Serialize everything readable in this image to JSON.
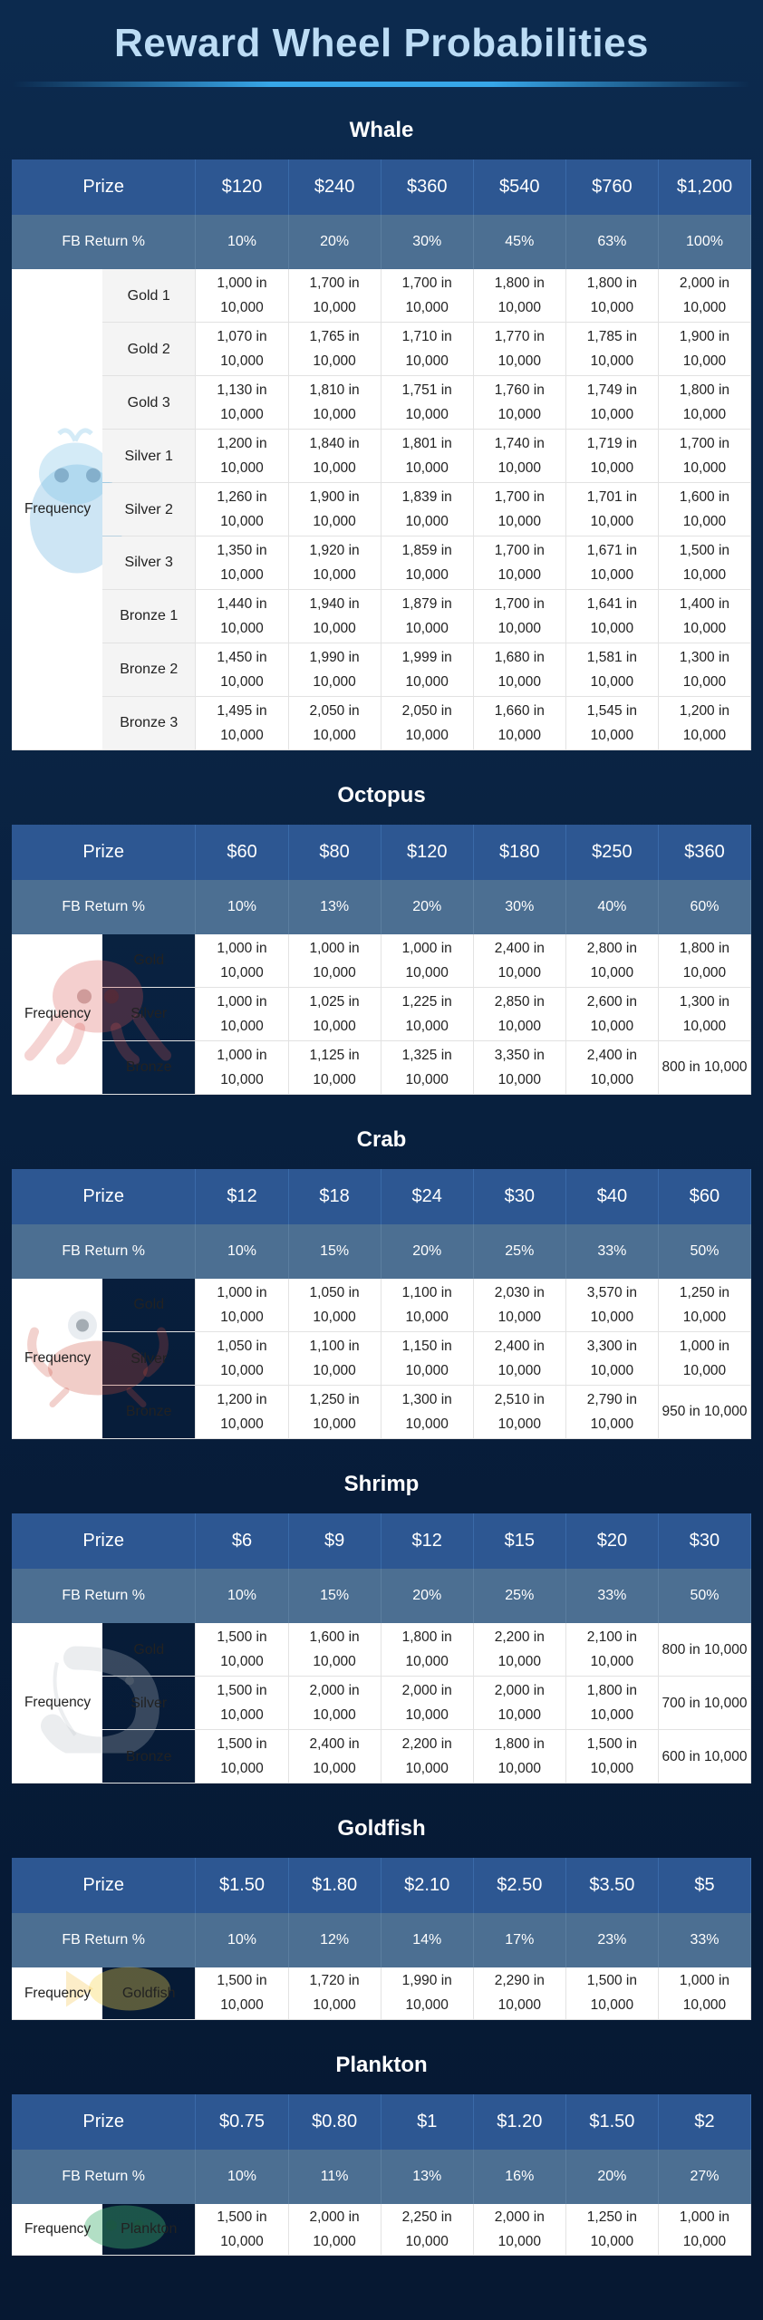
{
  "page": {
    "title": "Reward Wheel Probabilities"
  },
  "labels": {
    "prize": "Prize",
    "fb_return": "FB Return %",
    "frequency": "Frequency"
  },
  "sections": [
    {
      "name": "Whale",
      "icon": "whale-icon",
      "prizes": [
        "$120",
        "$240",
        "$360",
        "$540",
        "$760",
        "$1,200"
      ],
      "fb_return": [
        "10%",
        "20%",
        "30%",
        "45%",
        "63%",
        "100%"
      ],
      "rows": [
        {
          "tier": "Gold 1",
          "values": [
            "1,000 in\n10,000",
            "1,700 in\n10,000",
            "1,700 in\n10,000",
            "1,800 in\n10,000",
            "1,800 in\n10,000",
            "2,000 in\n10,000"
          ]
        },
        {
          "tier": "Gold 2",
          "values": [
            "1,070 in\n10,000",
            "1,765 in\n10,000",
            "1,710 in\n10,000",
            "1,770 in\n10,000",
            "1,785 in\n10,000",
            "1,900 in\n10,000"
          ]
        },
        {
          "tier": "Gold 3",
          "values": [
            "1,130 in\n10,000",
            "1,810 in\n10,000",
            "1,751 in\n10,000",
            "1,760 in\n10,000",
            "1,749 in\n10,000",
            "1,800 in\n10,000"
          ]
        },
        {
          "tier": "Silver 1",
          "values": [
            "1,200 in\n10,000",
            "1,840 in\n10,000",
            "1,801 in\n10,000",
            "1,740 in\n10,000",
            "1,719 in\n10,000",
            "1,700 in\n10,000"
          ]
        },
        {
          "tier": "Silver 2",
          "values": [
            "1,260 in\n10,000",
            "1,900 in\n10,000",
            "1,839 in\n10,000",
            "1,700 in\n10,000",
            "1,701 in\n10,000",
            "1,600 in\n10,000"
          ]
        },
        {
          "tier": "Silver 3",
          "values": [
            "1,350 in\n10,000",
            "1,920 in\n10,000",
            "1,859 in\n10,000",
            "1,700 in\n10,000",
            "1,671 in\n10,000",
            "1,500 in\n10,000"
          ]
        },
        {
          "tier": "Bronze 1",
          "values": [
            "1,440 in\n10,000",
            "1,940 in\n10,000",
            "1,879 in\n10,000",
            "1,700 in\n10,000",
            "1,641 in\n10,000",
            "1,400 in\n10,000"
          ]
        },
        {
          "tier": "Bronze 2",
          "values": [
            "1,450 in\n10,000",
            "1,990 in\n10,000",
            "1,999 in\n10,000",
            "1,680 in\n10,000",
            "1,581 in\n10,000",
            "1,300 in\n10,000"
          ]
        },
        {
          "tier": "Bronze 3",
          "values": [
            "1,495 in\n10,000",
            "2,050 in\n10,000",
            "2,050 in\n10,000",
            "1,660 in\n10,000",
            "1,545 in\n10,000",
            "1,200 in\n10,000"
          ]
        }
      ]
    },
    {
      "name": "Octopus",
      "icon": "octopus-icon",
      "prizes": [
        "$60",
        "$80",
        "$120",
        "$180",
        "$250",
        "$360"
      ],
      "fb_return": [
        "10%",
        "13%",
        "20%",
        "30%",
        "40%",
        "60%"
      ],
      "rows": [
        {
          "tier": "Gold",
          "values": [
            "1,000 in\n10,000",
            "1,000 in\n10,000",
            "1,000 in\n10,000",
            "2,400 in\n10,000",
            "2,800 in\n10,000",
            "1,800 in\n10,000"
          ]
        },
        {
          "tier": "Silver",
          "values": [
            "1,000 in\n10,000",
            "1,025 in\n10,000",
            "1,225 in\n10,000",
            "2,850 in\n10,000",
            "2,600 in\n10,000",
            "1,300 in\n10,000"
          ]
        },
        {
          "tier": "Bronze",
          "values": [
            "1,000 in\n10,000",
            "1,125 in\n10,000",
            "1,325 in\n10,000",
            "3,350 in\n10,000",
            "2,400 in\n10,000",
            "800 in 10,000"
          ]
        }
      ]
    },
    {
      "name": "Crab",
      "icon": "crab-icon",
      "prizes": [
        "$12",
        "$18",
        "$24",
        "$30",
        "$40",
        "$60"
      ],
      "fb_return": [
        "10%",
        "15%",
        "20%",
        "25%",
        "33%",
        "50%"
      ],
      "rows": [
        {
          "tier": "Gold",
          "values": [
            "1,000 in\n10,000",
            "1,050 in\n10,000",
            "1,100 in\n10,000",
            "2,030 in\n10,000",
            "3,570 in\n10,000",
            "1,250 in\n10,000"
          ]
        },
        {
          "tier": "Silver",
          "values": [
            "1,050 in\n10,000",
            "1,100 in\n10,000",
            "1,150 in\n10,000",
            "2,400 in\n10,000",
            "3,300 in\n10,000",
            "1,000 in\n10,000"
          ]
        },
        {
          "tier": "Bronze",
          "values": [
            "1,200 in\n10,000",
            "1,250 in\n10,000",
            "1,300 in\n10,000",
            "2,510 in\n10,000",
            "2,790 in\n10,000",
            "950 in 10,000"
          ]
        }
      ]
    },
    {
      "name": "Shrimp",
      "icon": "shrimp-icon",
      "prizes": [
        "$6",
        "$9",
        "$12",
        "$15",
        "$20",
        "$30"
      ],
      "fb_return": [
        "10%",
        "15%",
        "20%",
        "25%",
        "33%",
        "50%"
      ],
      "rows": [
        {
          "tier": "Gold",
          "values": [
            "1,500 in\n10,000",
            "1,600 in\n10,000",
            "1,800 in\n10,000",
            "2,200 in\n10,000",
            "2,100 in\n10,000",
            "800 in 10,000"
          ]
        },
        {
          "tier": "Silver",
          "values": [
            "1,500 in\n10,000",
            "2,000 in\n10,000",
            "2,000 in\n10,000",
            "2,000 in\n10,000",
            "1,800 in\n10,000",
            "700 in 10,000"
          ]
        },
        {
          "tier": "Bronze",
          "values": [
            "1,500 in\n10,000",
            "2,400 in\n10,000",
            "2,200 in\n10,000",
            "1,800 in\n10,000",
            "1,500 in\n10,000",
            "600 in 10,000"
          ]
        }
      ]
    },
    {
      "name": "Goldfish",
      "icon": "goldfish-icon",
      "prizes": [
        "$1.50",
        "$1.80",
        "$2.10",
        "$2.50",
        "$3.50",
        "$5"
      ],
      "fb_return": [
        "10%",
        "12%",
        "14%",
        "17%",
        "23%",
        "33%"
      ],
      "rows": [
        {
          "tier": "Goldfish",
          "values": [
            "1,500 in\n10,000",
            "1,720 in\n10,000",
            "1,990 in\n10,000",
            "2,290 in\n10,000",
            "1,500 in\n10,000",
            "1,000 in\n10,000"
          ]
        }
      ]
    },
    {
      "name": "Plankton",
      "icon": "plankton-icon",
      "prizes": [
        "$0.75",
        "$0.80",
        "$1",
        "$1.20",
        "$1.50",
        "$2"
      ],
      "fb_return": [
        "10%",
        "11%",
        "13%",
        "16%",
        "20%",
        "27%"
      ],
      "rows": [
        {
          "tier": "Plankton",
          "values": [
            "1,500 in\n10,000",
            "2,000 in\n10,000",
            "2,250 in\n10,000",
            "2,000 in\n10,000",
            "1,250 in\n10,000",
            "1,000 in\n10,000"
          ]
        }
      ]
    }
  ],
  "colors": {
    "background": "#0a2444",
    "title": "#bcdcf5",
    "accent_bar": "#37a6e8",
    "prize_header": "#2d5792",
    "fb_header": "#4c6f92"
  }
}
